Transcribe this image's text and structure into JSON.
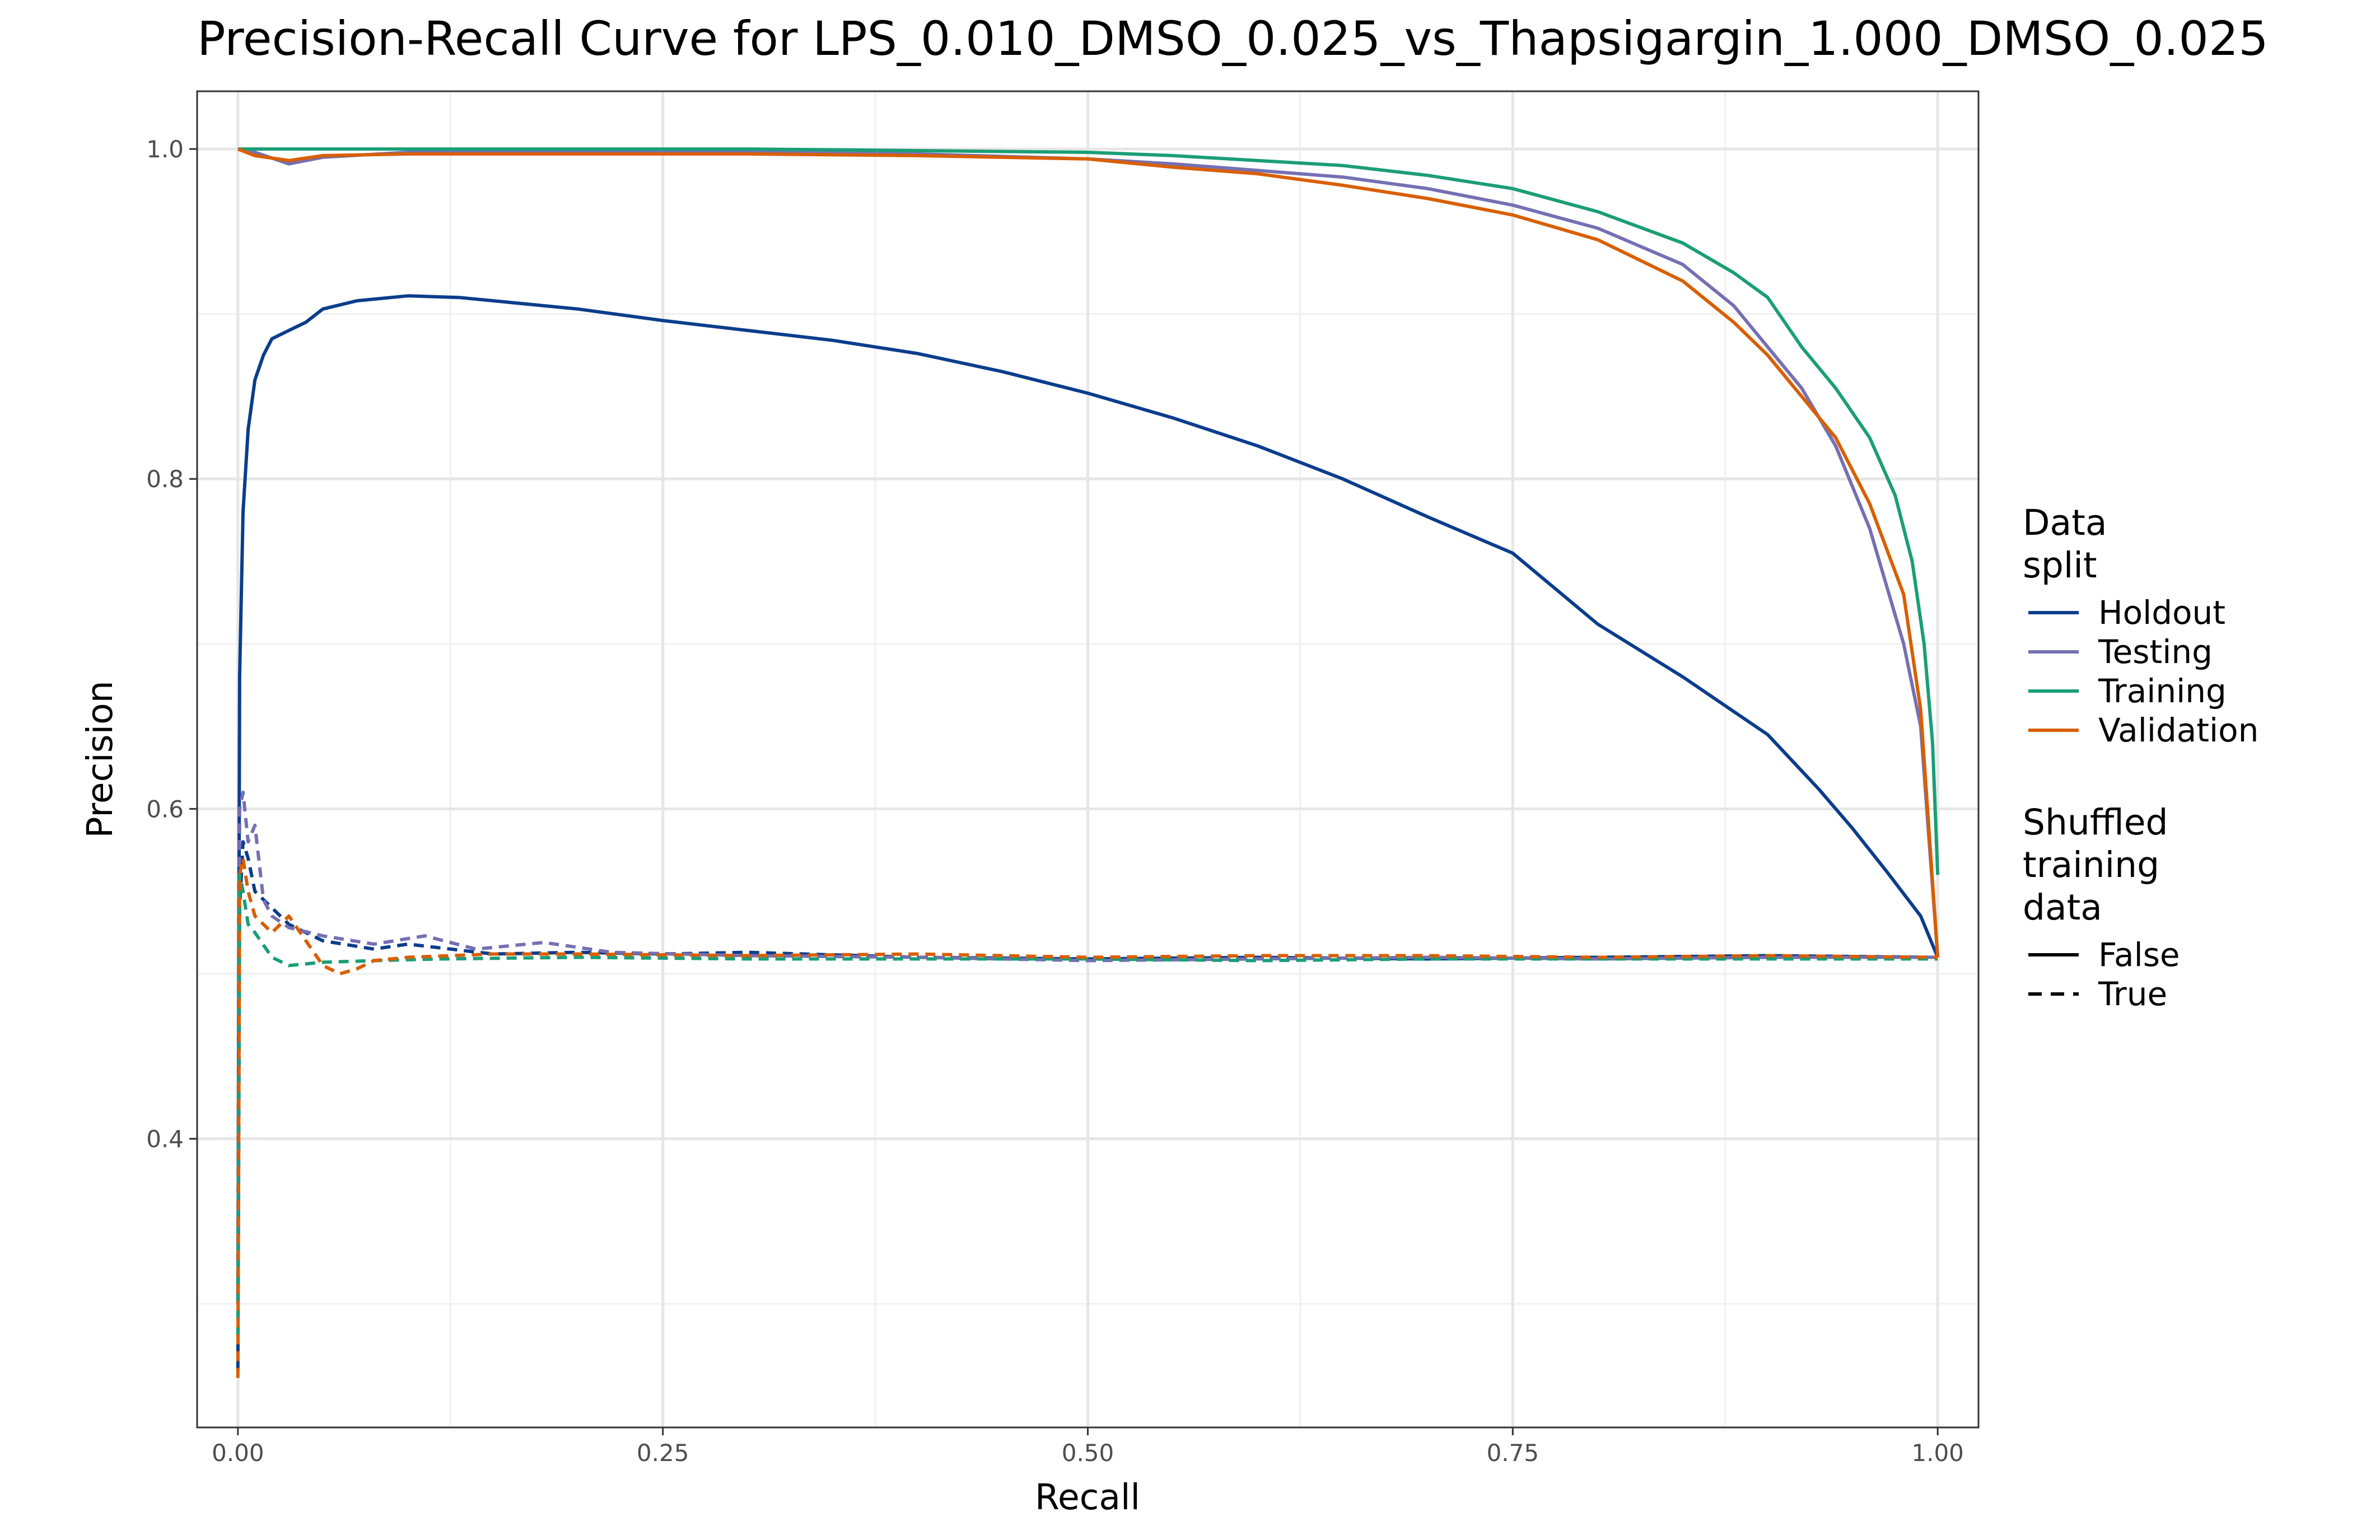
{
  "chart_data": {
    "type": "line",
    "title": "Precision-Recall Curve for LPS_0.010_DMSO_0.025_vs_Thapsigargin_1.000_DMSO_0.025",
    "xlabel": "Recall",
    "ylabel": "Precision",
    "xlim": [
      -0.024,
      1.024
    ],
    "ylim": [
      0.225,
      1.035
    ],
    "x_ticks": [
      "0.00",
      "0.25",
      "0.50",
      "0.75",
      "1.00"
    ],
    "y_ticks": [
      "0.4",
      "0.6",
      "0.8",
      "1.0"
    ],
    "grid": true,
    "legend_position": "right",
    "legend": {
      "color_title": "Data split",
      "color_title_lines": [
        "Data",
        "split"
      ],
      "linetype_title": "Shuffled training data",
      "linetype_title_lines": [
        "Shuffled",
        "training",
        "data"
      ],
      "linetypes": [
        {
          "name": "False",
          "dash": "solid"
        },
        {
          "name": "True",
          "dash": "dashed"
        }
      ]
    },
    "colors": {
      "Holdout": "#0b3d8c",
      "Testing": "#7570b3",
      "Training": "#1b9e77",
      "Validation": "#d95f02"
    },
    "series": [
      {
        "name": "Holdout",
        "shuffled": "False",
        "points": [
          [
            0,
            0.3
          ],
          [
            0.001,
            0.68
          ],
          [
            0.003,
            0.78
          ],
          [
            0.006,
            0.83
          ],
          [
            0.01,
            0.86
          ],
          [
            0.015,
            0.875
          ],
          [
            0.02,
            0.885
          ],
          [
            0.03,
            0.89
          ],
          [
            0.04,
            0.895
          ],
          [
            0.05,
            0.903
          ],
          [
            0.07,
            0.908
          ],
          [
            0.1,
            0.911
          ],
          [
            0.13,
            0.91
          ],
          [
            0.16,
            0.907
          ],
          [
            0.2,
            0.903
          ],
          [
            0.25,
            0.896
          ],
          [
            0.3,
            0.89
          ],
          [
            0.35,
            0.884
          ],
          [
            0.4,
            0.876
          ],
          [
            0.45,
            0.865
          ],
          [
            0.5,
            0.852
          ],
          [
            0.55,
            0.837
          ],
          [
            0.6,
            0.82
          ],
          [
            0.65,
            0.8
          ],
          [
            0.7,
            0.777
          ],
          [
            0.75,
            0.755
          ],
          [
            0.8,
            0.712
          ],
          [
            0.85,
            0.68
          ],
          [
            0.9,
            0.645
          ],
          [
            0.93,
            0.612
          ],
          [
            0.95,
            0.588
          ],
          [
            0.97,
            0.562
          ],
          [
            0.99,
            0.535
          ],
          [
            1.0,
            0.51
          ]
        ]
      },
      {
        "name": "Testing",
        "shuffled": "False",
        "points": [
          [
            0,
            1.0
          ],
          [
            0.01,
            0.998
          ],
          [
            0.03,
            0.991
          ],
          [
            0.05,
            0.995
          ],
          [
            0.1,
            0.998
          ],
          [
            0.2,
            0.998
          ],
          [
            0.3,
            0.998
          ],
          [
            0.4,
            0.997
          ],
          [
            0.5,
            0.994
          ],
          [
            0.55,
            0.991
          ],
          [
            0.6,
            0.987
          ],
          [
            0.65,
            0.983
          ],
          [
            0.7,
            0.976
          ],
          [
            0.75,
            0.966
          ],
          [
            0.8,
            0.952
          ],
          [
            0.85,
            0.93
          ],
          [
            0.88,
            0.905
          ],
          [
            0.9,
            0.88
          ],
          [
            0.92,
            0.855
          ],
          [
            0.94,
            0.82
          ],
          [
            0.96,
            0.77
          ],
          [
            0.98,
            0.7
          ],
          [
            0.99,
            0.65
          ],
          [
            1.0,
            0.51
          ]
        ]
      },
      {
        "name": "Training",
        "shuffled": "False",
        "points": [
          [
            0,
            1.0
          ],
          [
            0.1,
            1.0
          ],
          [
            0.2,
            1.0
          ],
          [
            0.3,
            1.0
          ],
          [
            0.4,
            0.999
          ],
          [
            0.5,
            0.998
          ],
          [
            0.55,
            0.996
          ],
          [
            0.6,
            0.993
          ],
          [
            0.65,
            0.99
          ],
          [
            0.7,
            0.984
          ],
          [
            0.75,
            0.976
          ],
          [
            0.8,
            0.962
          ],
          [
            0.85,
            0.943
          ],
          [
            0.88,
            0.925
          ],
          [
            0.9,
            0.91
          ],
          [
            0.92,
            0.88
          ],
          [
            0.94,
            0.855
          ],
          [
            0.96,
            0.825
          ],
          [
            0.975,
            0.79
          ],
          [
            0.985,
            0.75
          ],
          [
            0.992,
            0.7
          ],
          [
            0.997,
            0.64
          ],
          [
            1.0,
            0.56
          ]
        ]
      },
      {
        "name": "Validation",
        "shuffled": "False",
        "points": [
          [
            0,
            1.0
          ],
          [
            0.01,
            0.996
          ],
          [
            0.03,
            0.993
          ],
          [
            0.05,
            0.996
          ],
          [
            0.1,
            0.997
          ],
          [
            0.2,
            0.997
          ],
          [
            0.3,
            0.997
          ],
          [
            0.4,
            0.996
          ],
          [
            0.5,
            0.994
          ],
          [
            0.55,
            0.989
          ],
          [
            0.6,
            0.985
          ],
          [
            0.65,
            0.978
          ],
          [
            0.7,
            0.97
          ],
          [
            0.75,
            0.96
          ],
          [
            0.8,
            0.945
          ],
          [
            0.85,
            0.92
          ],
          [
            0.88,
            0.895
          ],
          [
            0.9,
            0.875
          ],
          [
            0.92,
            0.85
          ],
          [
            0.94,
            0.825
          ],
          [
            0.96,
            0.785
          ],
          [
            0.98,
            0.73
          ],
          [
            0.99,
            0.66
          ],
          [
            1.0,
            0.51
          ]
        ]
      },
      {
        "name": "Holdout",
        "shuffled": "True",
        "points": [
          [
            0,
            0.26
          ],
          [
            0.001,
            0.54
          ],
          [
            0.003,
            0.58
          ],
          [
            0.006,
            0.57
          ],
          [
            0.01,
            0.55
          ],
          [
            0.02,
            0.54
          ],
          [
            0.03,
            0.53
          ],
          [
            0.05,
            0.52
          ],
          [
            0.08,
            0.515
          ],
          [
            0.1,
            0.518
          ],
          [
            0.15,
            0.512
          ],
          [
            0.2,
            0.513
          ],
          [
            0.25,
            0.512
          ],
          [
            0.3,
            0.513
          ],
          [
            0.4,
            0.51
          ],
          [
            0.5,
            0.509
          ],
          [
            0.6,
            0.51
          ],
          [
            0.7,
            0.509
          ],
          [
            0.8,
            0.51
          ],
          [
            0.9,
            0.511
          ],
          [
            1.0,
            0.51
          ]
        ]
      },
      {
        "name": "Testing",
        "shuffled": "True",
        "points": [
          [
            0,
            0.3
          ],
          [
            0.001,
            0.6
          ],
          [
            0.003,
            0.61
          ],
          [
            0.006,
            0.58
          ],
          [
            0.01,
            0.59
          ],
          [
            0.015,
            0.545
          ],
          [
            0.02,
            0.535
          ],
          [
            0.03,
            0.528
          ],
          [
            0.05,
            0.523
          ],
          [
            0.08,
            0.518
          ],
          [
            0.11,
            0.523
          ],
          [
            0.14,
            0.515
          ],
          [
            0.18,
            0.519
          ],
          [
            0.22,
            0.513
          ],
          [
            0.3,
            0.511
          ],
          [
            0.4,
            0.51
          ],
          [
            0.5,
            0.508
          ],
          [
            0.6,
            0.509
          ],
          [
            0.7,
            0.51
          ],
          [
            0.8,
            0.509
          ],
          [
            0.9,
            0.51
          ],
          [
            1.0,
            0.51
          ]
        ]
      },
      {
        "name": "Training",
        "shuffled": "True",
        "points": [
          [
            0,
            0.28
          ],
          [
            0.001,
            0.56
          ],
          [
            0.003,
            0.55
          ],
          [
            0.006,
            0.53
          ],
          [
            0.01,
            0.525
          ],
          [
            0.02,
            0.51
          ],
          [
            0.03,
            0.505
          ],
          [
            0.05,
            0.507
          ],
          [
            0.08,
            0.508
          ],
          [
            0.12,
            0.509
          ],
          [
            0.2,
            0.51
          ],
          [
            0.3,
            0.509
          ],
          [
            0.4,
            0.509
          ],
          [
            0.5,
            0.509
          ],
          [
            0.6,
            0.508
          ],
          [
            0.7,
            0.509
          ],
          [
            0.8,
            0.509
          ],
          [
            0.9,
            0.509
          ],
          [
            1.0,
            0.509
          ]
        ]
      },
      {
        "name": "Validation",
        "shuffled": "True",
        "points": [
          [
            0,
            0.255
          ],
          [
            0.001,
            0.56
          ],
          [
            0.003,
            0.57
          ],
          [
            0.006,
            0.55
          ],
          [
            0.01,
            0.535
          ],
          [
            0.02,
            0.525
          ],
          [
            0.03,
            0.535
          ],
          [
            0.04,
            0.52
          ],
          [
            0.05,
            0.505
          ],
          [
            0.06,
            0.5
          ],
          [
            0.07,
            0.503
          ],
          [
            0.08,
            0.508
          ],
          [
            0.1,
            0.51
          ],
          [
            0.15,
            0.512
          ],
          [
            0.2,
            0.512
          ],
          [
            0.3,
            0.511
          ],
          [
            0.4,
            0.512
          ],
          [
            0.5,
            0.51
          ],
          [
            0.6,
            0.511
          ],
          [
            0.7,
            0.511
          ],
          [
            0.8,
            0.51
          ],
          [
            0.9,
            0.511
          ],
          [
            1.0,
            0.51
          ]
        ]
      }
    ]
  }
}
